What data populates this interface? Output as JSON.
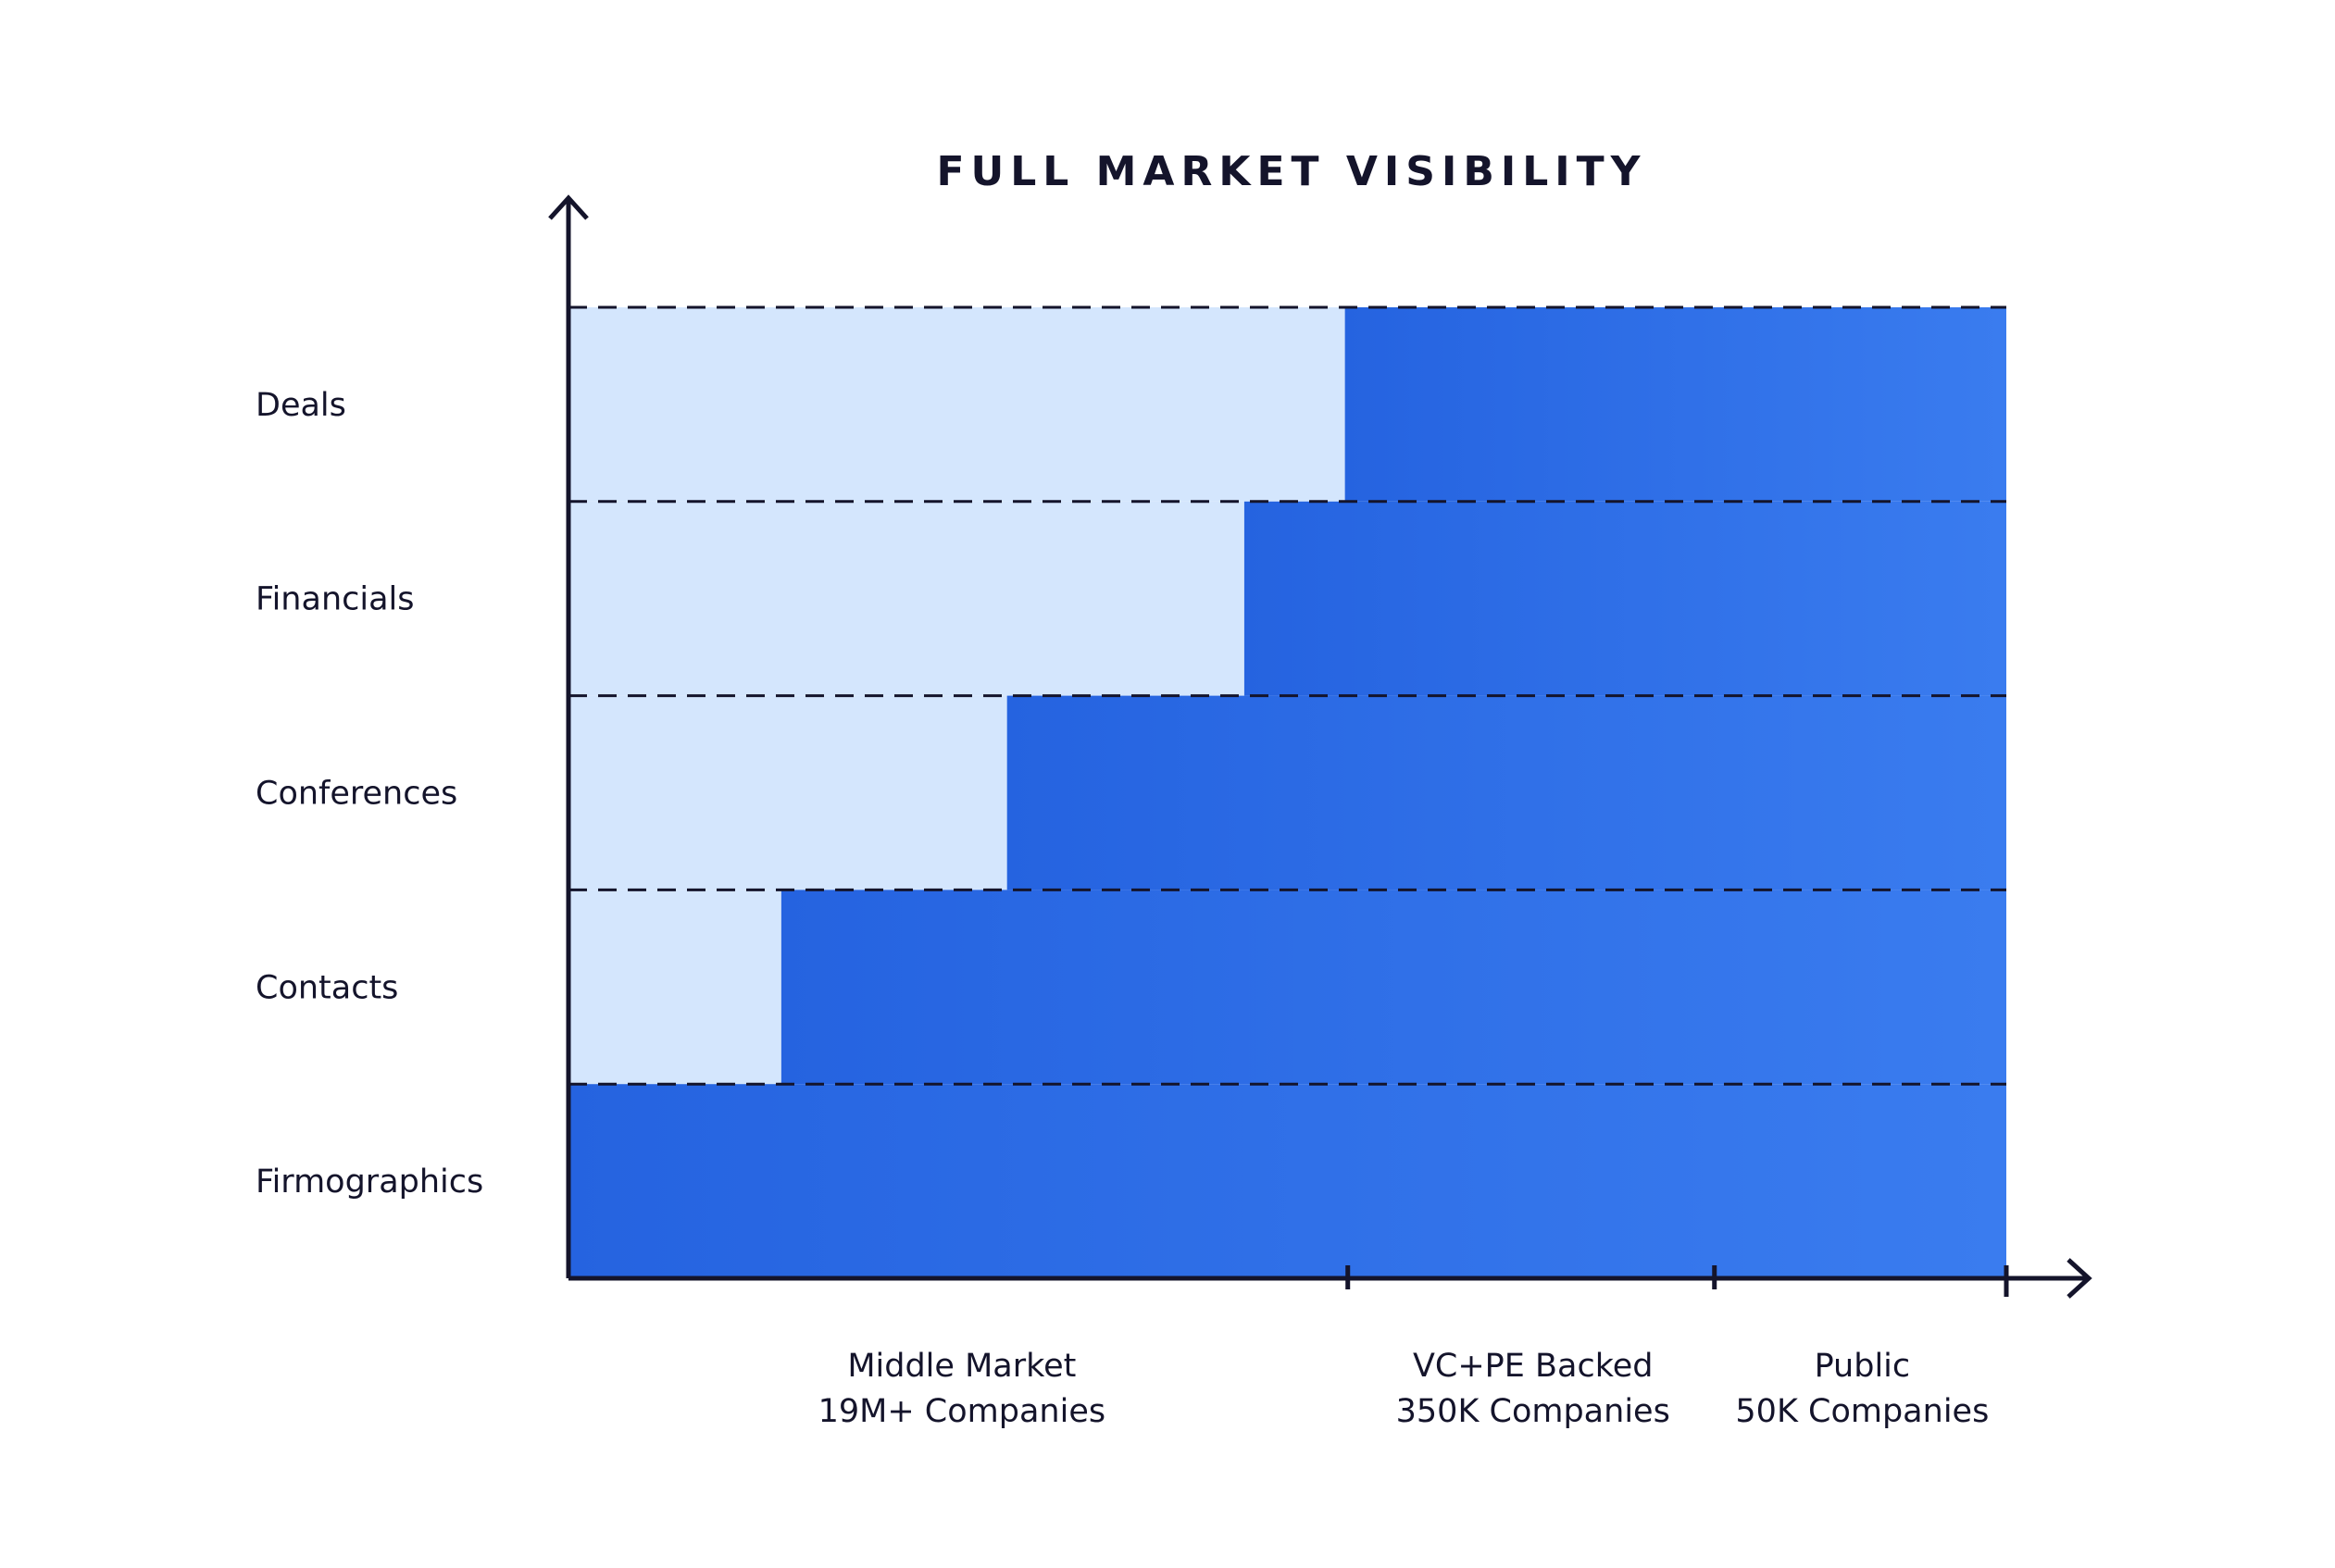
{
  "chart_data": {
    "type": "table",
    "title": "FULL MARKET VISIBILITY",
    "rows": [
      "Deals",
      "Financials",
      "Conferences",
      "Contacts",
      "Firmographics"
    ],
    "segments": [
      {
        "name": "Middle Market",
        "count": "19M+ Companies"
      },
      {
        "name": "VC+PE Backed",
        "count": "350K Companies"
      },
      {
        "name": "Public",
        "count": "50K Companies"
      }
    ],
    "coverage_start_fraction": {
      "Deals": 0.54,
      "Financials": 0.47,
      "Conferences": 0.305,
      "Contacts": 0.148,
      "Firmographics": 0.0
    },
    "segment_end_fraction": [
      0.542,
      0.797,
      1.0
    ],
    "colors": {
      "covered_start": "#2563e0",
      "covered_end": "#3a7cef",
      "uncovered": "#d4e6fd",
      "axis": "#14142b"
    }
  }
}
